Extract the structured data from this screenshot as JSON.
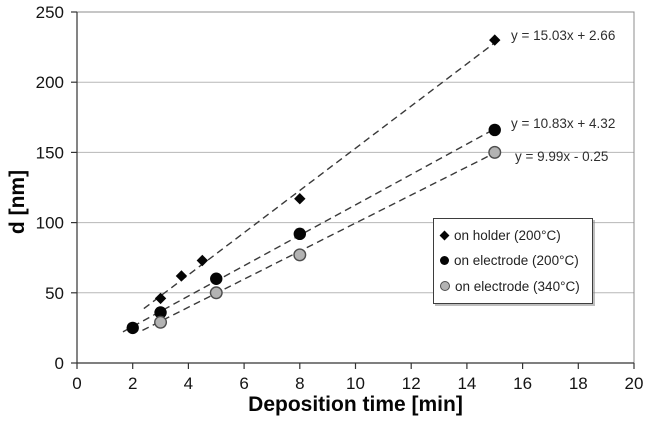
{
  "chart_data": {
    "type": "scatter",
    "title": "",
    "xlabel": "Deposition time [min]",
    "ylabel": "d [nm]",
    "xlim": [
      0,
      20
    ],
    "ylim": [
      0,
      250
    ],
    "xticks": [
      0,
      2,
      4,
      6,
      8,
      10,
      12,
      14,
      16,
      18,
      20
    ],
    "yticks": [
      0,
      50,
      100,
      150,
      200,
      250
    ],
    "grid": "horizontal-only",
    "legend_position": "middle-right-inside",
    "series": [
      {
        "name": "on holder (200°C)",
        "marker": "diamond-black",
        "points": [
          [
            3,
            46
          ],
          [
            3.75,
            62
          ],
          [
            4.5,
            73
          ],
          [
            8,
            117
          ],
          [
            15,
            230
          ]
        ],
        "fit": {
          "equation": "y = 15.03x + 2.66",
          "slope": 15.03,
          "intercept": 2.66,
          "line_style": "dashed",
          "line_x": [
            2.4,
            15.1
          ]
        }
      },
      {
        "name": "on electrode (200°C)",
        "marker": "circle-black",
        "points": [
          [
            2,
            25
          ],
          [
            3,
            36
          ],
          [
            5,
            60
          ],
          [
            8,
            92
          ],
          [
            15,
            166
          ]
        ],
        "fit": {
          "equation": "y = 10.83x + 4.32",
          "slope": 10.83,
          "intercept": 4.32,
          "line_style": "dashed",
          "line_x": [
            1.65,
            15.1
          ]
        }
      },
      {
        "name": "on electrode (340°C)",
        "marker": "circle-gray",
        "points": [
          [
            3,
            29
          ],
          [
            5,
            50
          ],
          [
            8,
            77
          ],
          [
            15,
            150
          ]
        ],
        "fit": {
          "equation": "y = 9.99x - 0.25",
          "slope": 9.99,
          "intercept": -0.25,
          "line_style": "dashed",
          "line_x": [
            2.35,
            15.1
          ]
        }
      }
    ],
    "colors": {
      "background": "#ffffff",
      "gridline": "#b7b7b7",
      "plot_border": "#8c8c8c",
      "axis": "#333333",
      "trendline": "#3a3a3a",
      "marker_black": "#050505",
      "marker_gray_fill": "#b3b3b3",
      "marker_gray_edge": "#4d4d4d",
      "text": "#141414"
    }
  }
}
